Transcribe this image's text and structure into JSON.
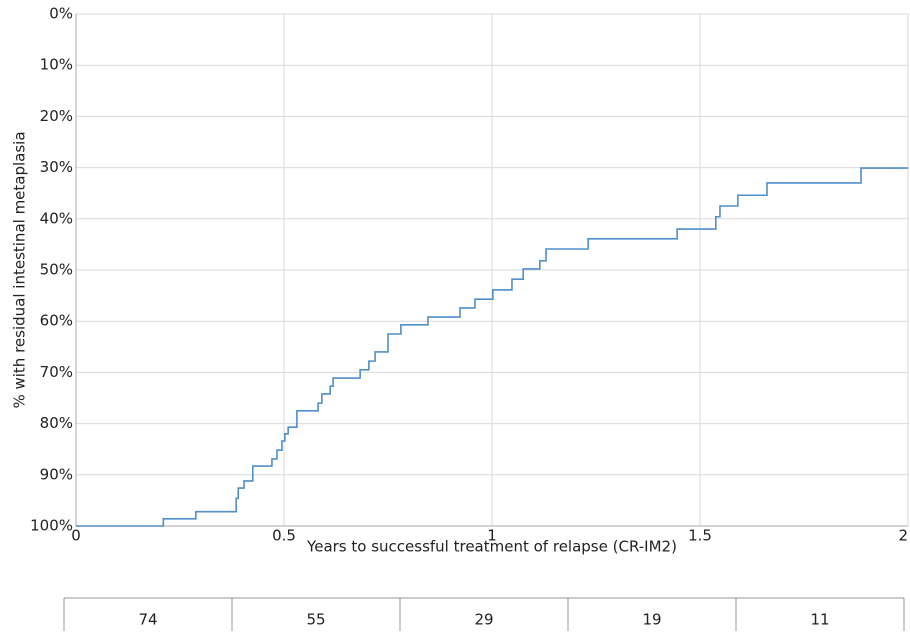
{
  "chart_data": {
    "type": "step",
    "x_label": "Years to successful treatment of relapse (CR-IM2)",
    "y_label": "% with residual intestinal metaplasia",
    "xlim": [
      0,
      2
    ],
    "xticks": [
      0,
      0.5,
      1,
      1.5,
      2
    ],
    "ylim": [
      0,
      100
    ],
    "y_inverted": true,
    "yticks": [
      {
        "value": 0,
        "label": "0%"
      },
      {
        "value": 10,
        "label": "10%"
      },
      {
        "value": 20,
        "label": "20%"
      },
      {
        "value": 30,
        "label": "30%"
      },
      {
        "value": 40,
        "label": "40%"
      },
      {
        "value": 50,
        "label": "50%"
      },
      {
        "value": 60,
        "label": "60%"
      },
      {
        "value": 70,
        "label": "70%"
      },
      {
        "value": 80,
        "label": "80%"
      },
      {
        "value": 90,
        "label": "90%"
      },
      {
        "value": 100,
        "label": "100%"
      }
    ],
    "grid": true,
    "x": [
      0,
      0.21,
      0.288,
      0.385,
      0.39,
      0.404,
      0.425,
      0.471,
      0.483,
      0.495,
      0.502,
      0.51,
      0.531,
      0.582,
      0.591,
      0.611,
      0.618,
      0.683,
      0.704,
      0.719,
      0.75,
      0.781,
      0.846,
      0.923,
      0.959,
      1.002,
      1.048,
      1.075,
      1.115,
      1.13,
      1.231,
      1.445,
      1.538,
      1.548,
      1.591,
      1.661,
      1.887,
      2
    ],
    "series": [
      {
        "color": "#4f8fcb",
        "values": [
          100,
          98.6,
          97.2,
          94.6,
          92.6,
          91.2,
          88.3,
          86.9,
          85.2,
          83.4,
          82,
          80.7,
          77.5,
          76,
          74.2,
          72.7,
          71.1,
          69.5,
          67.8,
          66,
          62.5,
          60.7,
          59.2,
          57.4,
          55.7,
          53.9,
          51.8,
          49.8,
          48.2,
          45.9,
          43.9,
          42,
          39.6,
          37.5,
          35.4,
          33,
          30.1,
          30.1
        ]
      }
    ],
    "at_risk": [
      74,
      55,
      29,
      19,
      11
    ]
  }
}
